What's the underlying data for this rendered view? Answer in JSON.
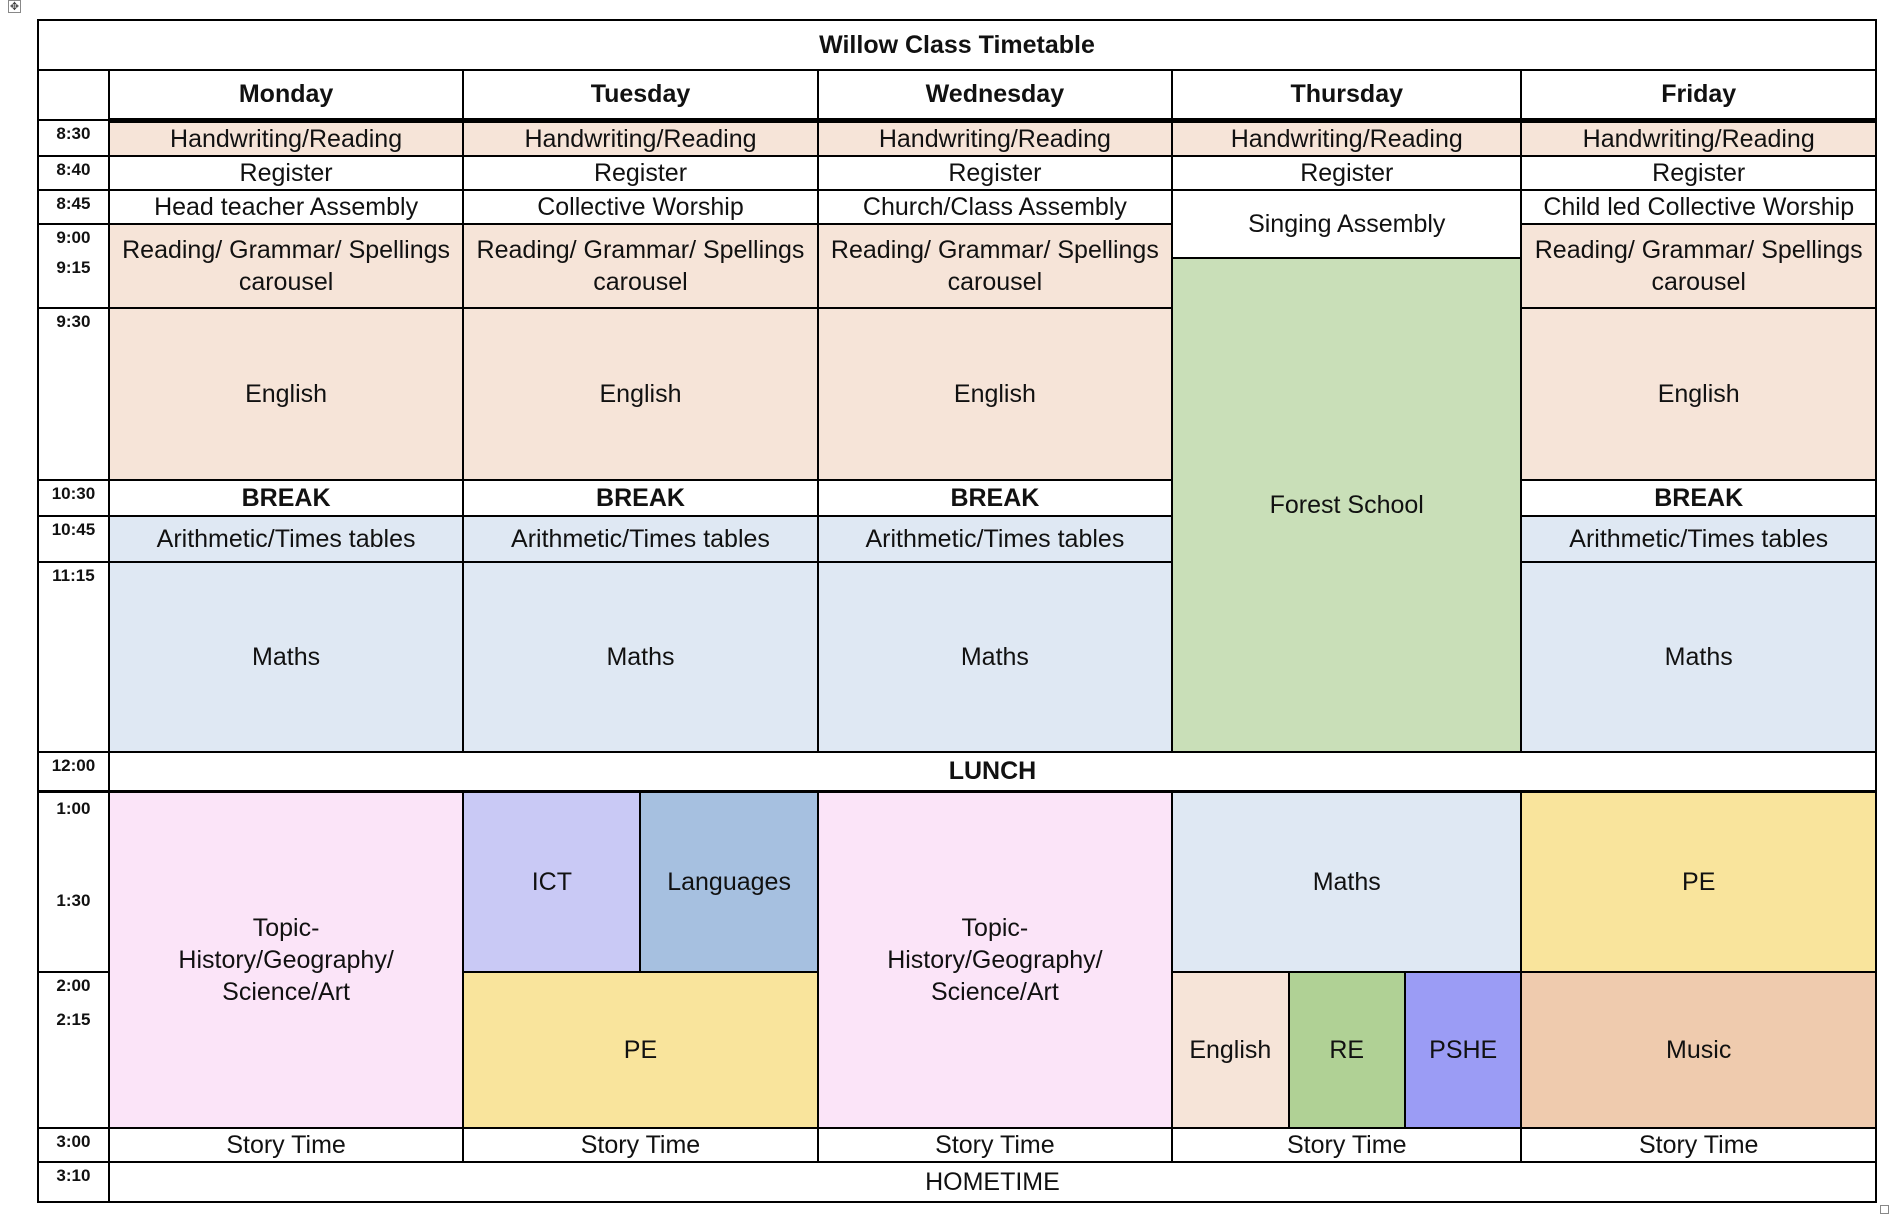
{
  "title": "Willow Class Timetable",
  "days": [
    "Monday",
    "Tuesday",
    "Wednesday",
    "Thursday",
    "Friday"
  ],
  "times": {
    "t830": "8:30",
    "t840": "8:40",
    "t845": "8:45",
    "t900": "9:00",
    "t915": "9:15",
    "t930": "9:30",
    "t1030": "10:30",
    "t1045": "10:45",
    "t1115": "11:15",
    "t1200": "12:00",
    "t100": "1:00",
    "t130": "1:30",
    "t200": "2:00",
    "t215": "2:15",
    "t300": "3:00",
    "t310": "3:10"
  },
  "labels": {
    "handwriting": "Handwriting/Reading",
    "register": "Register",
    "headteacher_assembly": "Head teacher Assembly",
    "collective_worship": "Collective Worship",
    "church_assembly": "Church/Class Assembly",
    "singing_assembly": "Singing Assembly",
    "child_led_worship": "Child led Collective Worship",
    "reading_carousel": "Reading/ Grammar/ Spellings carousel",
    "english": "English",
    "forest_school": "Forest School",
    "break": "BREAK",
    "arithmetic": "Arithmetic/Times tables",
    "maths": "Maths",
    "lunch": "LUNCH",
    "topic": "Topic-History/Geography/ Science/Art",
    "ict": "ICT",
    "languages": "Languages",
    "pe": "PE",
    "re": "RE",
    "pshe": "PSHE",
    "music": "Music",
    "story_time": "Story Time",
    "hometime": "HOMETIME"
  }
}
